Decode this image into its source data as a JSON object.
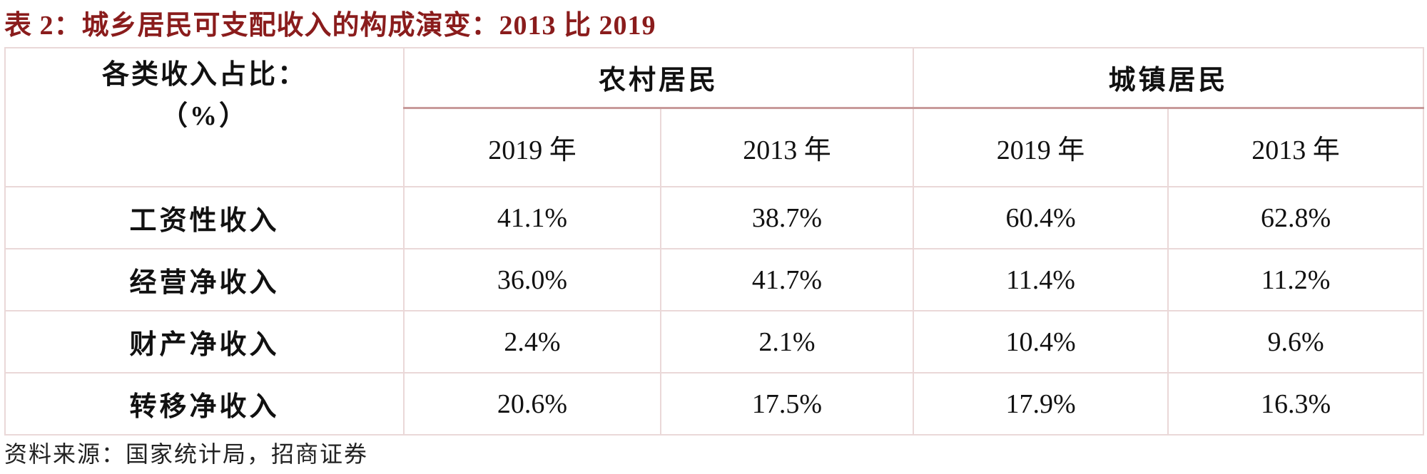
{
  "header": {
    "title": "表 2：城乡居民可支配收入的构成演变：2013 比 2019"
  },
  "table": {
    "corner": [
      "各类收入占比：",
      "（%）"
    ],
    "groups": [
      "农村居民",
      "城镇居民"
    ],
    "years": [
      "2019 年",
      "2013 年",
      "2019 年",
      "2013 年"
    ],
    "rows": [
      [
        "工资性收入",
        "41.1%",
        "38.7%",
        "60.4%",
        "62.8%"
      ],
      [
        "经营净收入",
        "36.0%",
        "41.7%",
        "11.4%",
        "11.2%"
      ],
      [
        "财产净收入",
        "2.4%",
        "2.1%",
        "10.4%",
        "9.6%"
      ],
      [
        "转移净收入",
        "20.6%",
        "17.5%",
        "17.9%",
        "16.3%"
      ]
    ]
  },
  "footer": {
    "source": "资料来源：国家统计局，招商证券"
  }
}
